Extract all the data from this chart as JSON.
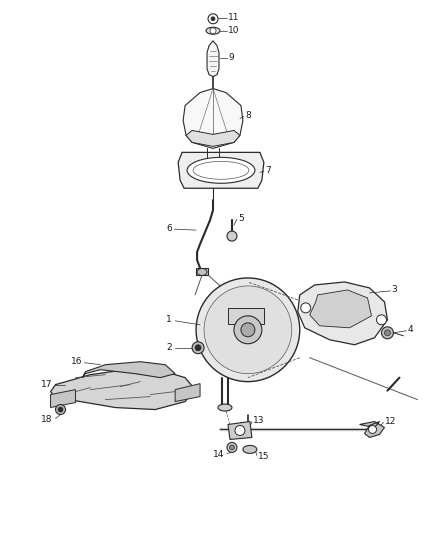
{
  "bg_color": "#ffffff",
  "line_color": "#2a2a2a",
  "label_color": "#1a1a1a",
  "fig_width": 4.38,
  "fig_height": 5.33,
  "dpi": 100
}
